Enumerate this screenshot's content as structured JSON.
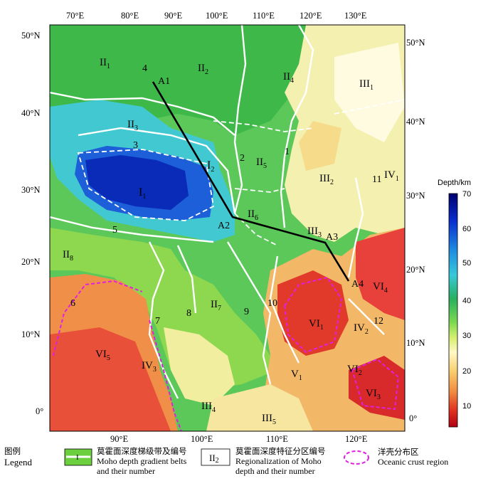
{
  "top_lon_ticks": [
    "70°E",
    "80°E",
    "90°E",
    "100°E",
    "110°E",
    "120°E",
    "130°E"
  ],
  "bottom_lon_ticks": [
    "90°E",
    "100°E",
    "110°E",
    "120°E"
  ],
  "left_lat_ticks": [
    "50°N",
    "40°N",
    "30°N",
    "20°N",
    "10°N",
    "0°"
  ],
  "right_lat_ticks": [
    "50°N",
    "40°N",
    "30°N",
    "20°N",
    "10°N",
    "0°"
  ],
  "colorbar": {
    "title": "Depth/km",
    "ticks": [
      "70",
      "60",
      "50",
      "40",
      "30",
      "20",
      "10"
    ],
    "colors": [
      "#000070",
      "#0a2fd0",
      "#1f90e0",
      "#38c8d8",
      "#28b060",
      "#7ad850",
      "#d8f070",
      "#fff8c8",
      "#f8d070",
      "#f08a40",
      "#e03020",
      "#b00010"
    ]
  },
  "profile_points": [
    "A1",
    "A2",
    "A3",
    "A4"
  ],
  "gradient_belt_numbers": [
    "1",
    "2",
    "3",
    "4",
    "5",
    "6",
    "7",
    "8",
    "9",
    "10",
    "11",
    "12"
  ],
  "zones": [
    {
      "main": "II",
      "sub": "1"
    },
    {
      "main": "II",
      "sub": "2"
    },
    {
      "main": "II",
      "sub": "3"
    },
    {
      "main": "II",
      "sub": "4"
    },
    {
      "main": "II",
      "sub": "5"
    },
    {
      "main": "II",
      "sub": "6"
    },
    {
      "main": "II",
      "sub": "7"
    },
    {
      "main": "II",
      "sub": "8"
    },
    {
      "main": "I",
      "sub": "1"
    },
    {
      "main": "I",
      "sub": "2"
    },
    {
      "main": "III",
      "sub": "1"
    },
    {
      "main": "III",
      "sub": "2"
    },
    {
      "main": "III",
      "sub": "3"
    },
    {
      "main": "III",
      "sub": "4"
    },
    {
      "main": "III",
      "sub": "5"
    },
    {
      "main": "IV",
      "sub": "1"
    },
    {
      "main": "IV",
      "sub": "2"
    },
    {
      "main": "IV",
      "sub": "3"
    },
    {
      "main": "V",
      "sub": "1"
    },
    {
      "main": "VI",
      "sub": "1"
    },
    {
      "main": "VI",
      "sub": "2"
    },
    {
      "main": "VI",
      "sub": "3"
    },
    {
      "main": "VI",
      "sub": "4"
    },
    {
      "main": "VI",
      "sub": "5"
    }
  ],
  "legend": {
    "header_cn": "图例",
    "header_en": "Legend",
    "belt_symbol": "I",
    "belt_cn": "莫霍面深度梯级带及编号",
    "belt_en1": "Moho depth gradient belts",
    "belt_en2": "and their number",
    "region_symbol_main": "II",
    "region_symbol_sub": "2",
    "region_cn": "莫霍面深度特征分区编号",
    "region_en1": "Regionalization of Moho",
    "region_en2": "depth and their number",
    "ocean_cn": "洋壳分布区",
    "ocean_en": "Oceanic crust region"
  }
}
